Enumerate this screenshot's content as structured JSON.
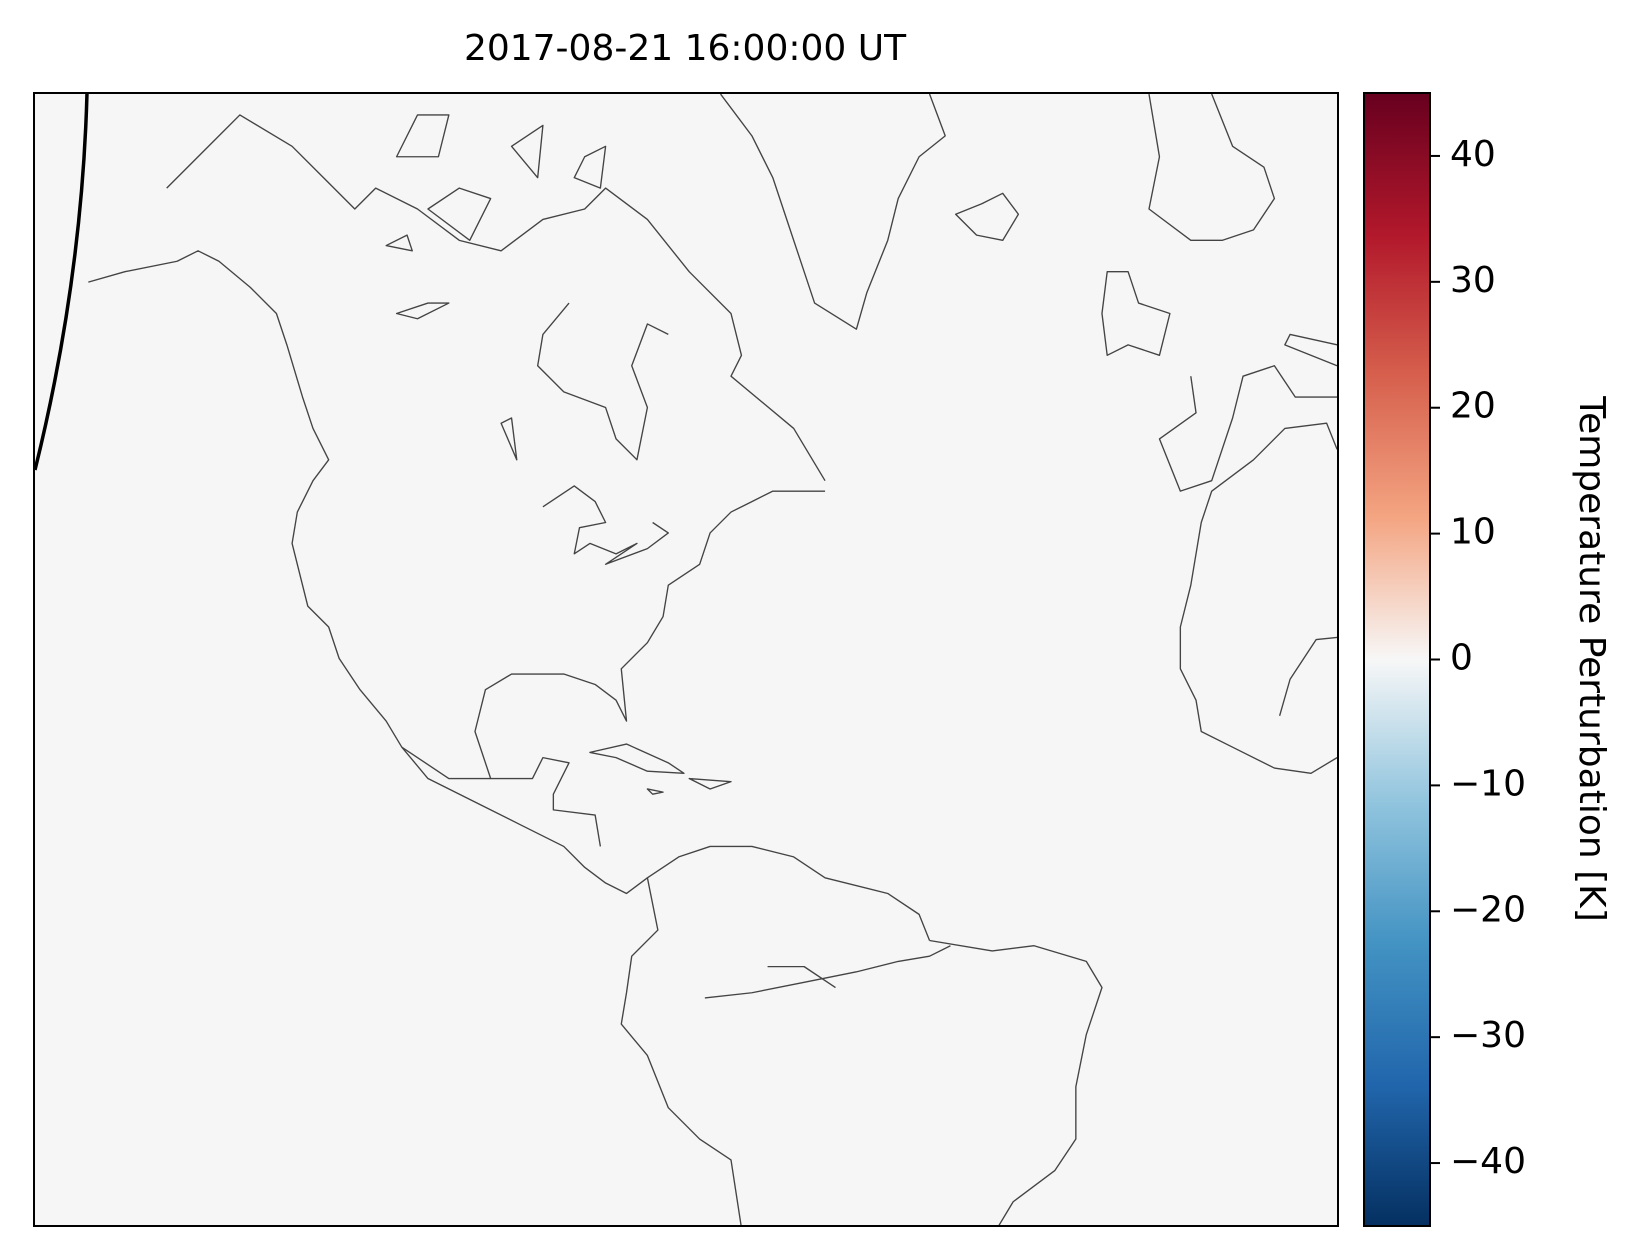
{
  "title": "2017-08-21 16:00:00 UT",
  "colorbar": {
    "label": "Temperature Perturbation [K]",
    "lim": [
      -45,
      45
    ],
    "ticks": [
      {
        "value": -40,
        "label": "−40"
      },
      {
        "value": -30,
        "label": "−30"
      },
      {
        "value": -20,
        "label": "−20"
      },
      {
        "value": -10,
        "label": "−10"
      },
      0,
      10,
      20,
      30,
      40
    ]
  }
}
